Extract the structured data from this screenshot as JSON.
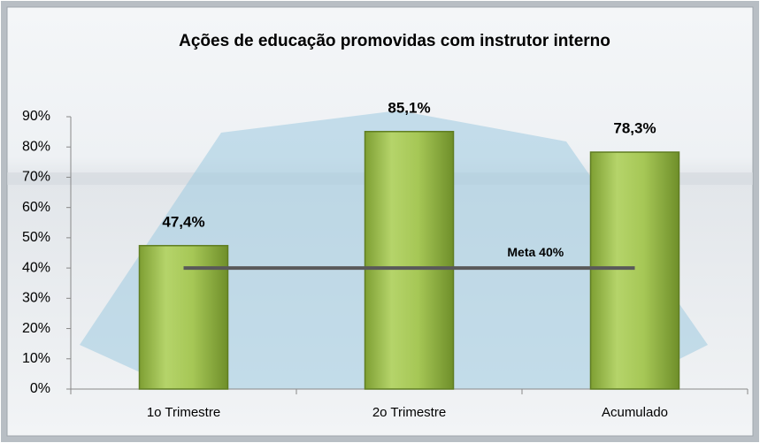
{
  "chart_data": {
    "type": "bar",
    "title": "Ações de educação promovidas com instrutor interno",
    "categories": [
      "1o Trimestre",
      "2o Trimestre",
      "Acumulado"
    ],
    "values": [
      47.4,
      85.1,
      78.3
    ],
    "value_labels": [
      "47,4%",
      "85,1%",
      "78,3%"
    ],
    "color": "#9bbb59",
    "ylim": [
      0,
      90
    ],
    "yticks": [
      {
        "value": 0,
        "label": "0%"
      },
      {
        "value": 10,
        "label": "10%"
      },
      {
        "value": 20,
        "label": "20%"
      },
      {
        "value": 30,
        "label": "30%"
      },
      {
        "value": 40,
        "label": "40%"
      },
      {
        "value": 50,
        "label": "50%"
      },
      {
        "value": 60,
        "label": "60%"
      },
      {
        "value": 70,
        "label": "70%"
      },
      {
        "value": 80,
        "label": "80%"
      },
      {
        "value": 90,
        "label": "90%"
      }
    ],
    "target": {
      "label": "Meta 40%",
      "value": 40,
      "color": "#595959"
    }
  }
}
